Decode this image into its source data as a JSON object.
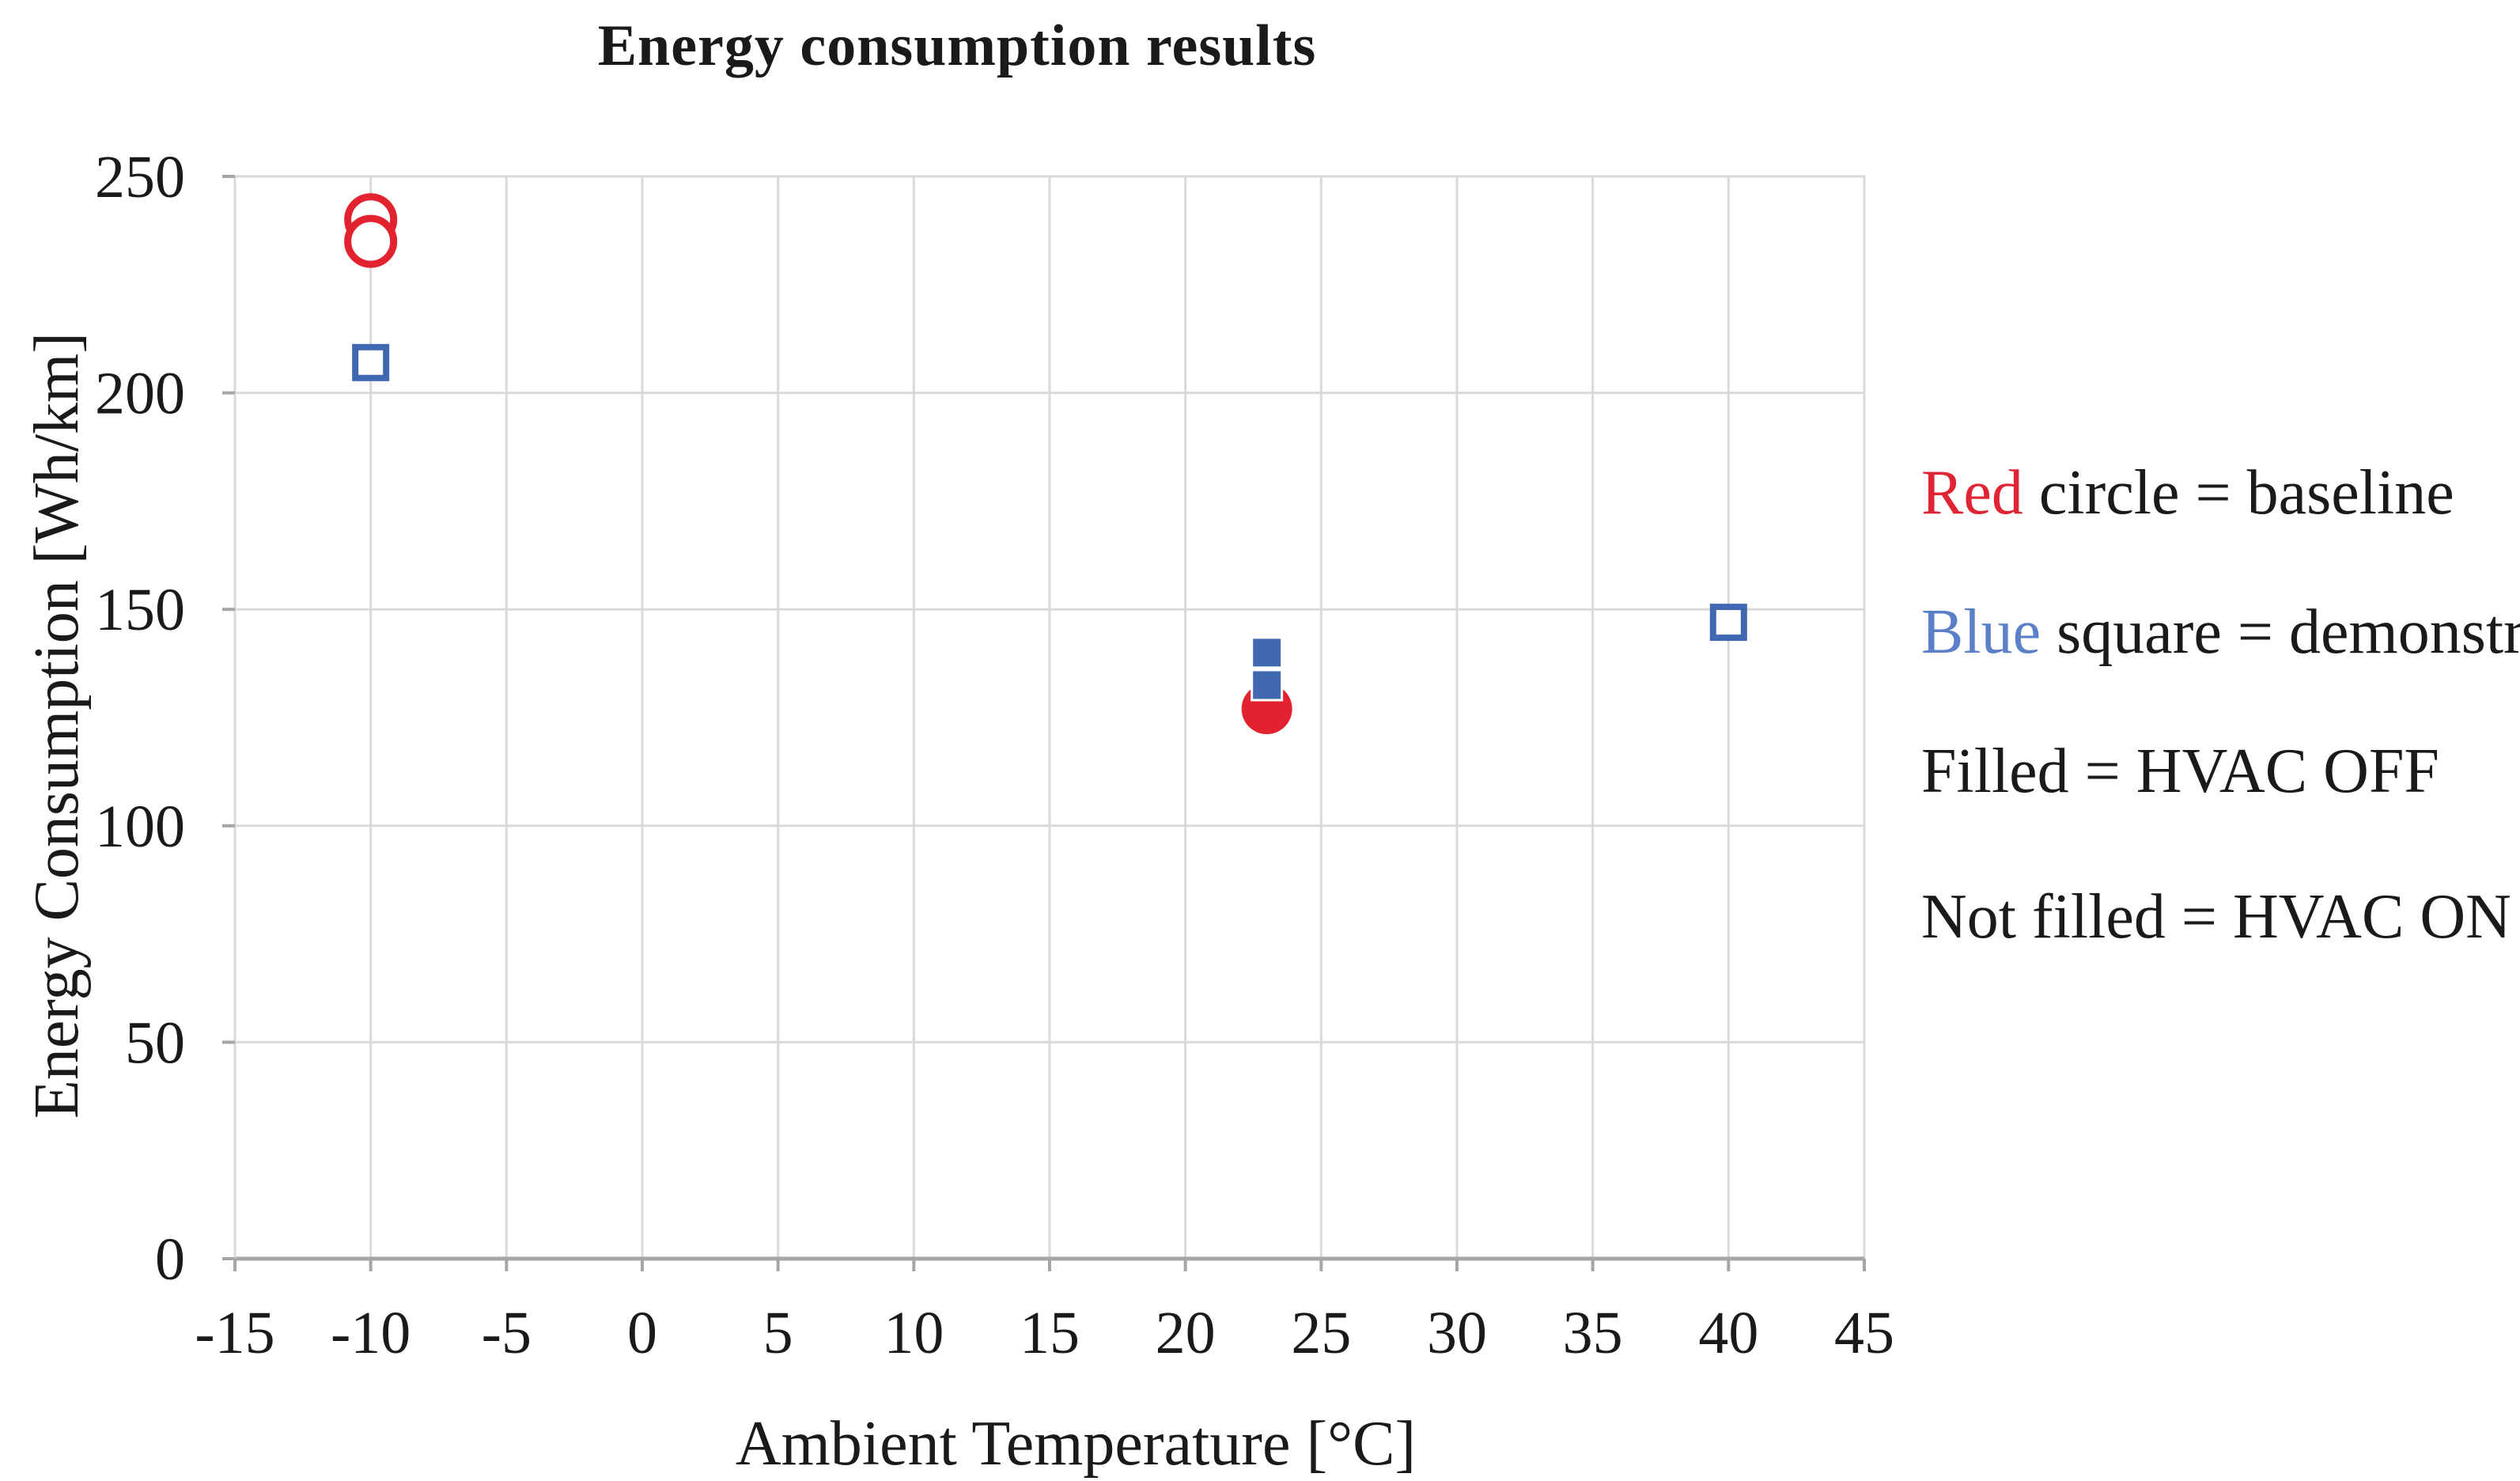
{
  "chart_data": {
    "type": "scatter",
    "title": "Energy consumption results",
    "xlabel": "Ambient Temperature [°C]",
    "ylabel": "Energy Consumption [Wh/km]",
    "xlim": [
      -15,
      45
    ],
    "xtick_step": 5,
    "ylim": [
      0,
      250
    ],
    "ytick_step": 50,
    "grid": true,
    "legend_position": "right-text-block",
    "colors": {
      "red": "#e32230",
      "blue": "#4068b0",
      "grid": "#d9d9d9",
      "axis": "#a6a6a6"
    },
    "series": [
      {
        "name": "Baseline, HVAC ON",
        "marker": "circle",
        "fill": "none",
        "color": "#e32230",
        "points": [
          {
            "x": -10,
            "y": 240
          },
          {
            "x": -10,
            "y": 235
          }
        ]
      },
      {
        "name": "Demonstrator, HVAC ON",
        "marker": "square",
        "fill": "none",
        "color": "#4068b0",
        "points": [
          {
            "x": -10,
            "y": 207
          },
          {
            "x": 40,
            "y": 147
          }
        ]
      },
      {
        "name": "Baseline, HVAC OFF",
        "marker": "circle",
        "fill": "solid",
        "color": "#e32230",
        "points": [
          {
            "x": 23,
            "y": 127
          }
        ]
      },
      {
        "name": "Demonstrator, HVAC OFF",
        "marker": "square",
        "fill": "solid",
        "color": "#4068b0",
        "points": [
          {
            "x": 23,
            "y": 140
          },
          {
            "x": 23,
            "y": 132.5
          }
        ]
      }
    ]
  },
  "legend": {
    "lines": [
      {
        "word": "Red",
        "word_color": "#e02433",
        "rest": " circle = baseline"
      },
      {
        "word": "Blue",
        "word_color": "#5b80c9",
        "rest": " square = demonstrator"
      },
      {
        "word": "",
        "word_color": "",
        "rest": "Filled = HVAC OFF"
      },
      {
        "word": "",
        "word_color": "",
        "rest": "Not filled = HVAC ON"
      }
    ]
  }
}
